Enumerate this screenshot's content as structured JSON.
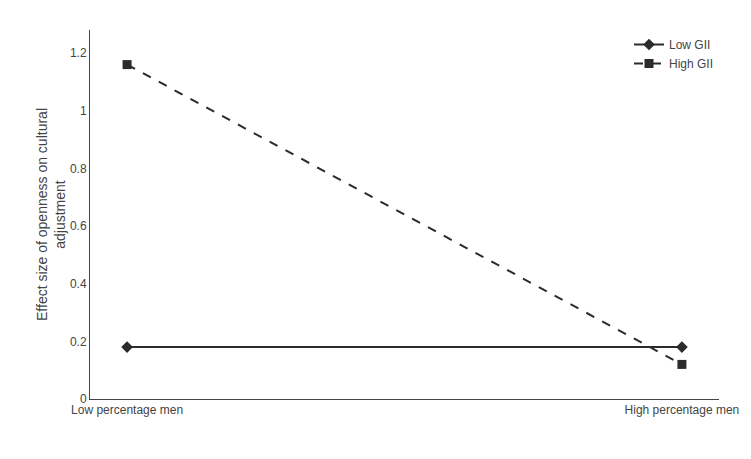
{
  "chart_data": {
    "type": "line",
    "categories": [
      "Low percentage men",
      "High percentage men"
    ],
    "series": [
      {
        "name": "Low GII",
        "color": "#2b2b2b",
        "marker": "diamond",
        "line_style": "solid",
        "values": [
          0.18,
          0.18
        ]
      },
      {
        "name": "High GII",
        "color": "#2b2b2b",
        "marker": "square",
        "line_style": "dash",
        "values": [
          1.16,
          0.12
        ]
      }
    ],
    "ylabel": "Effect size of openness on cultural\nadjustment",
    "ylim": [
      0,
      1.28
    ],
    "yticks": [
      0,
      0.2,
      0.4,
      0.6,
      0.8,
      1,
      1.2
    ],
    "grid": false,
    "legend": "upper right"
  }
}
